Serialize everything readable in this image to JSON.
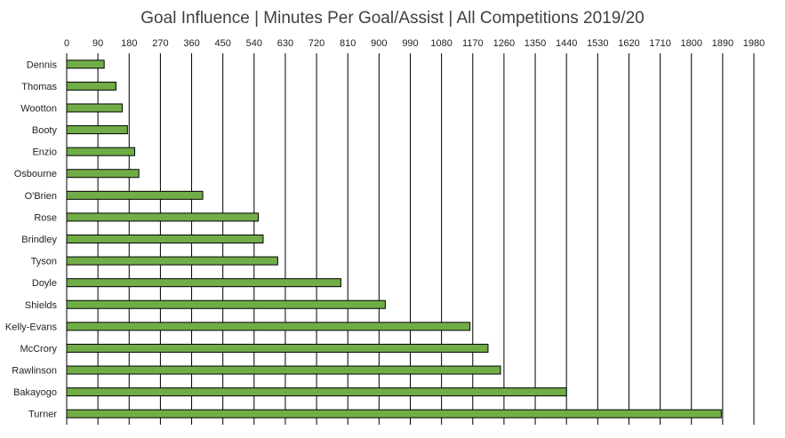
{
  "chart_data": {
    "type": "bar",
    "orientation": "horizontal",
    "title": "Goal Influence | Minutes Per Goal/Assist | All Competitions 2019/20",
    "xlabel": "",
    "ylabel": "",
    "xlim": [
      0,
      1980
    ],
    "x_ticks": [
      0,
      90,
      180,
      270,
      360,
      450,
      540,
      630,
      720,
      810,
      900,
      990,
      1080,
      1170,
      1260,
      1350,
      1440,
      1530,
      1620,
      1710,
      1800,
      1890,
      1980
    ],
    "x_tick_labels": [
      "0",
      "90",
      "180",
      "270",
      "360",
      "450",
      "540",
      "630",
      "720",
      "810",
      "900",
      "990",
      "1080",
      "1170",
      "1260",
      "1350",
      "1440",
      "1530",
      "1620",
      "1710",
      "1800",
      "1890",
      "1980"
    ],
    "x_axis_position": "top",
    "grid": true,
    "legend": "none",
    "bar_color": "#70AD47",
    "bar_edge_color": "#000000",
    "categories": [
      "Dennis",
      "Thomas",
      "Wootton",
      "Booty",
      "Enzio",
      "Osbourne",
      "O'Brien",
      "Rose",
      "Brindley",
      "Tyson",
      "Doyle",
      "Shields",
      "Kelly-Evans",
      "McCrory",
      "Rawlinson",
      "Bakayogo",
      "Turner"
    ],
    "values": [
      108,
      142,
      160,
      175,
      196,
      208,
      392,
      552,
      566,
      608,
      790,
      918,
      1162,
      1214,
      1250,
      1440,
      1886
    ]
  }
}
